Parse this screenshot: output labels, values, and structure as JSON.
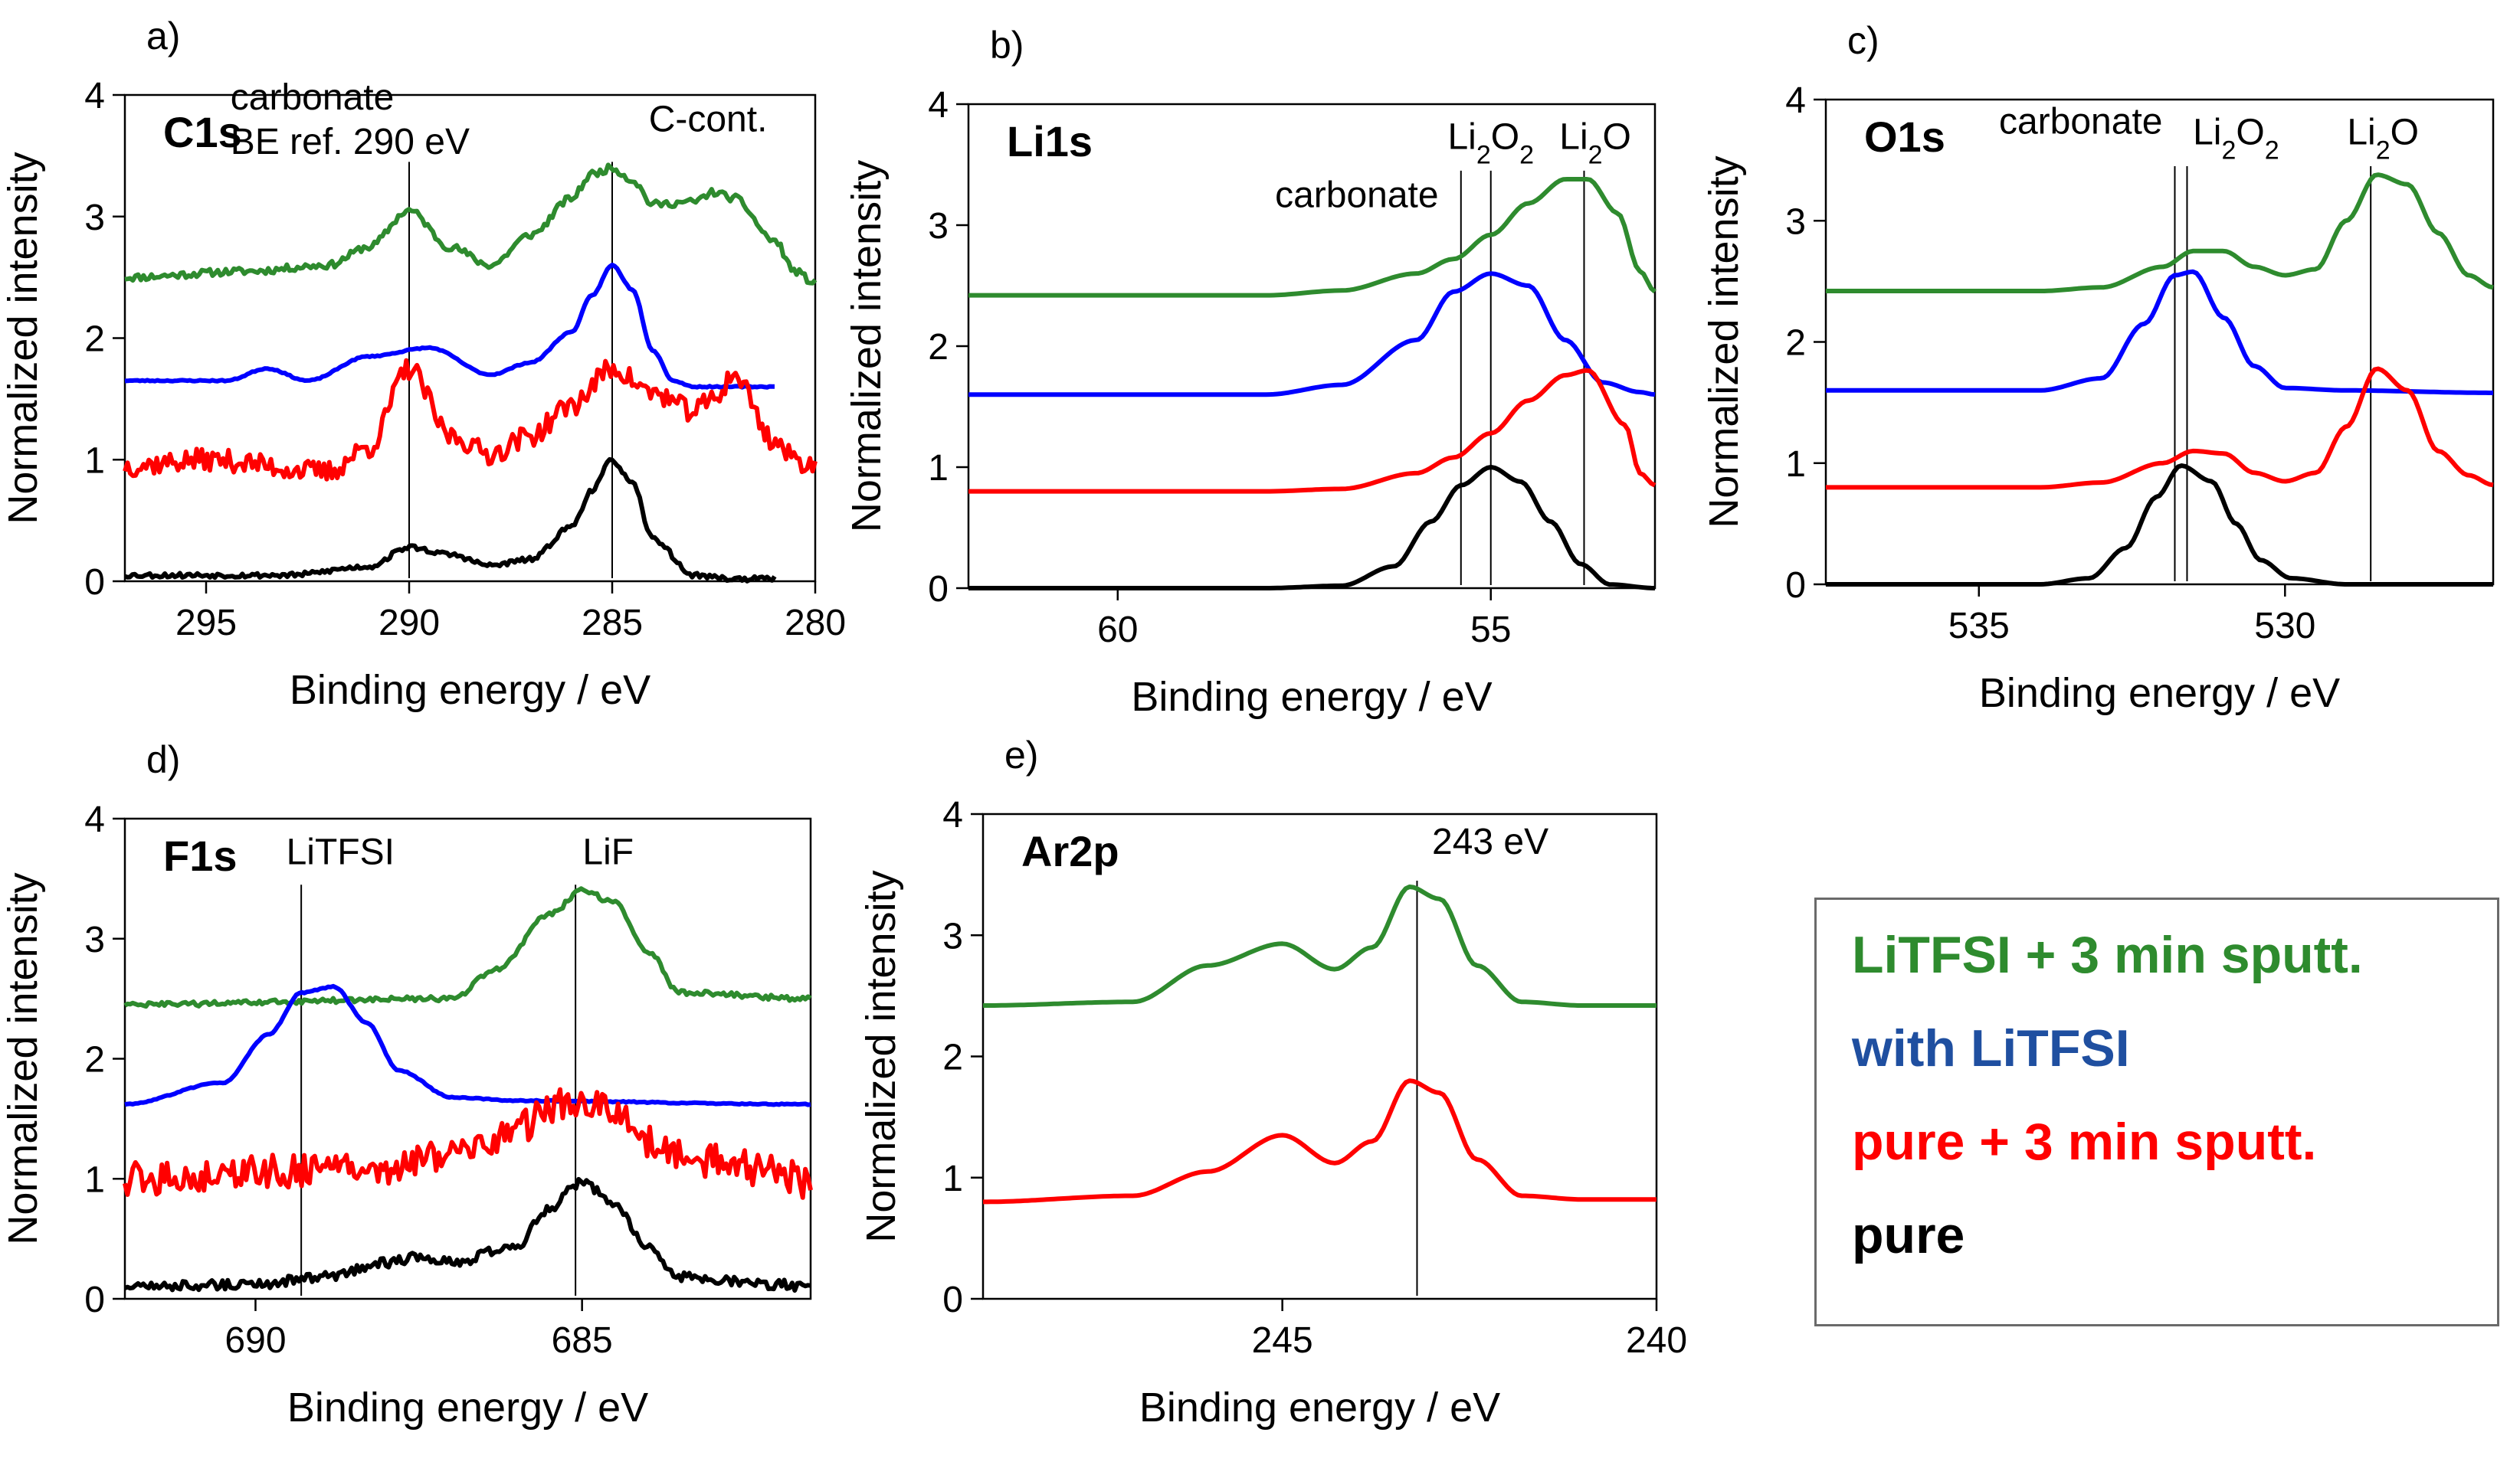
{
  "series_colors": {
    "lisputt": "#2e8b2e",
    "litfsi": "#0000ff",
    "puresputt": "#ff0000",
    "pure": "#000000"
  },
  "legend": {
    "entries": [
      {
        "key": "lisputt",
        "label": "LiTFSI + 3 min sputt.",
        "color": "#2e8b2e"
      },
      {
        "key": "litfsi",
        "label": "with LiTFSI",
        "color": "#1f4fa0"
      },
      {
        "key": "puresputt",
        "label": "pure + 3 min sputt.",
        "color": "#ff0000"
      },
      {
        "key": "pure",
        "label": "pure",
        "color": "#000000"
      }
    ]
  },
  "chart_data": [
    {
      "type": "line",
      "letter": "a)",
      "title": "C1s",
      "xlabel": "Binding energy / eV",
      "ylabel": "Normalized intensity",
      "xlim": [
        297,
        280
      ],
      "ylim": [
        0,
        4
      ],
      "xticks": [
        295,
        290,
        285,
        280
      ],
      "yticks": [
        0,
        1,
        2,
        3,
        4
      ],
      "noise": {
        "lisputt": 0.03,
        "litfsi": 0.005,
        "puresputt": 0.09,
        "pure": 0.02
      },
      "series": [
        {
          "key": "lisputt",
          "name": "LiTFSI + 3 min sputt.",
          "x": [
            297,
            294,
            292,
            291,
            290,
            289,
            288,
            287,
            286,
            285.5,
            285,
            284.5,
            284,
            283,
            282.5,
            282,
            281,
            280.5,
            280
          ],
          "y": [
            2.5,
            2.55,
            2.6,
            2.75,
            3.05,
            2.75,
            2.6,
            2.85,
            3.15,
            3.35,
            3.4,
            3.3,
            3.1,
            3.12,
            3.2,
            3.15,
            2.8,
            2.55,
            2.45
          ]
        },
        {
          "key": "litfsi",
          "name": "with LiTFSI",
          "x": [
            297,
            294.5,
            293.5,
            292.5,
            291,
            289.5,
            288,
            287,
            286,
            285.5,
            285,
            284.5,
            284,
            283.5,
            283,
            281
          ],
          "y": [
            1.65,
            1.65,
            1.75,
            1.65,
            1.85,
            1.92,
            1.7,
            1.8,
            2.05,
            2.35,
            2.6,
            2.4,
            1.9,
            1.65,
            1.6,
            1.6
          ]
        },
        {
          "key": "puresputt",
          "name": "pure + 3 min sputt.",
          "x": [
            297,
            295,
            292,
            291,
            290,
            289,
            288,
            287,
            286,
            285,
            284,
            283,
            282.5,
            282,
            281,
            280.5,
            280
          ],
          "y": [
            0.95,
            1.0,
            0.9,
            1.1,
            1.75,
            1.2,
            1.05,
            1.2,
            1.45,
            1.75,
            1.55,
            1.4,
            1.5,
            1.7,
            1.15,
            1.0,
            0.95
          ]
        },
        {
          "key": "pure",
          "name": "pure",
          "x": [
            297,
            293,
            291,
            290,
            289,
            288,
            287,
            286,
            285.5,
            285,
            284.5,
            284,
            283,
            282,
            281
          ],
          "y": [
            0.05,
            0.05,
            0.12,
            0.28,
            0.22,
            0.13,
            0.18,
            0.45,
            0.75,
            1.0,
            0.8,
            0.35,
            0.05,
            0.02,
            0.02
          ]
        }
      ],
      "vlines": [
        290,
        285
      ],
      "annotations": [
        {
          "lines": [
            [
              {
                "t": "carbonate"
              }
            ],
            [
              {
                "t": "BE ref. 290 eV"
              }
            ]
          ],
          "x": 294.4,
          "y": 3.88,
          "anchor": "start"
        },
        {
          "lines": [
            [
              {
                "t": "C-cont."
              }
            ]
          ],
          "x": 284.1,
          "y": 3.7,
          "anchor": "start"
        }
      ]
    },
    {
      "type": "line",
      "letter": "b)",
      "title": "Li1s",
      "xlabel": "Binding energy / eV",
      "ylabel": "Normalized intensity",
      "xlim": [
        62,
        52.8
      ],
      "ylim": [
        0,
        4
      ],
      "xticks": [
        60,
        55
      ],
      "yticks": [
        0,
        1,
        2,
        3,
        4
      ],
      "noise": {},
      "series": [
        {
          "key": "lisputt",
          "name": "LiTFSI + 3 min sputt.",
          "x": [
            62,
            58,
            57,
            56,
            55.5,
            55,
            54.5,
            54,
            53.7,
            53.3,
            53,
            52.8
          ],
          "y": [
            2.42,
            2.42,
            2.46,
            2.6,
            2.72,
            2.92,
            3.18,
            3.38,
            3.38,
            3.1,
            2.62,
            2.45
          ]
        },
        {
          "key": "litfsi",
          "name": "with LiTFSI",
          "x": [
            62,
            58,
            57,
            56,
            55.5,
            55,
            54.5,
            54,
            53.5,
            53,
            52.8
          ],
          "y": [
            1.6,
            1.6,
            1.68,
            2.05,
            2.45,
            2.6,
            2.5,
            2.05,
            1.7,
            1.62,
            1.6
          ]
        },
        {
          "key": "puresputt",
          "name": "pure + 3 min sputt.",
          "x": [
            62,
            58,
            57,
            56,
            55.5,
            55,
            54.5,
            54,
            53.7,
            53.2,
            53,
            52.8
          ],
          "y": [
            0.8,
            0.8,
            0.82,
            0.95,
            1.08,
            1.28,
            1.55,
            1.76,
            1.8,
            1.35,
            0.95,
            0.85
          ]
        },
        {
          "key": "pure",
          "name": "pure",
          "x": [
            62,
            58,
            57,
            56.3,
            55.8,
            55.4,
            55,
            54.6,
            54.2,
            53.8,
            53.4,
            52.8
          ],
          "y": [
            0,
            0,
            0.02,
            0.18,
            0.55,
            0.85,
            1.0,
            0.88,
            0.55,
            0.2,
            0.03,
            0.0
          ]
        }
      ],
      "vlines": [
        55.4,
        55.0,
        53.75
      ],
      "annotations": [
        {
          "lines": [
            [
              {
                "t": "carbonate"
              }
            ]
          ],
          "x": 55.7,
          "y": 3.15,
          "anchor": "end"
        },
        {
          "lines": [
            [
              {
                "t": "Li"
              },
              {
                "t": "2",
                "sub": true
              },
              {
                "t": "O"
              },
              {
                "t": "2",
                "sub": true
              }
            ]
          ],
          "x": 55.0,
          "y": 3.63,
          "anchor": "middle"
        },
        {
          "lines": [
            [
              {
                "t": "Li"
              },
              {
                "t": "2",
                "sub": true
              },
              {
                "t": "O"
              }
            ]
          ],
          "x": 53.6,
          "y": 3.63,
          "anchor": "middle"
        }
      ]
    },
    {
      "type": "line",
      "letter": "c)",
      "title": "O1s",
      "xlabel": "Binding energy / eV",
      "ylabel": "Normalized intensity",
      "xlim": [
        537.5,
        526.6
      ],
      "ylim": [
        0,
        4
      ],
      "xticks": [
        535,
        530
      ],
      "yticks": [
        0,
        1,
        2,
        3,
        4
      ],
      "noise": {},
      "series": [
        {
          "key": "lisputt",
          "name": "LiTFSI + 3 min sputt.",
          "x": [
            537.5,
            534,
            533,
            532,
            531.5,
            531,
            530.5,
            530,
            529.5,
            529,
            528.5,
            528,
            527.5,
            527,
            526.6
          ],
          "y": [
            2.42,
            2.42,
            2.45,
            2.62,
            2.75,
            2.75,
            2.62,
            2.55,
            2.6,
            3.0,
            3.38,
            3.3,
            2.9,
            2.55,
            2.45
          ]
        },
        {
          "key": "litfsi",
          "name": "with LiTFSI",
          "x": [
            537.5,
            534,
            533,
            532.3,
            531.8,
            531.5,
            531,
            530.5,
            530,
            529,
            526.6
          ],
          "y": [
            1.6,
            1.6,
            1.7,
            2.15,
            2.55,
            2.58,
            2.2,
            1.8,
            1.62,
            1.6,
            1.58
          ]
        },
        {
          "key": "puresputt",
          "name": "pure + 3 min sputt.",
          "x": [
            537.5,
            534,
            533,
            532,
            531.5,
            531,
            530.5,
            530,
            529.5,
            529,
            528.5,
            528,
            527.5,
            527,
            526.6
          ],
          "y": [
            0.8,
            0.8,
            0.84,
            1.0,
            1.1,
            1.08,
            0.92,
            0.85,
            0.92,
            1.3,
            1.78,
            1.6,
            1.1,
            0.9,
            0.82
          ]
        },
        {
          "key": "pure",
          "name": "pure",
          "x": [
            537.5,
            534,
            533.2,
            532.6,
            532.1,
            531.7,
            531.2,
            530.8,
            530.4,
            529.9,
            529,
            526.6
          ],
          "y": [
            0,
            0,
            0.05,
            0.3,
            0.72,
            0.98,
            0.85,
            0.5,
            0.2,
            0.05,
            0,
            0
          ]
        }
      ],
      "vlines": [
        531.8,
        531.6,
        528.6
      ],
      "annotations": [
        {
          "lines": [
            [
              {
                "t": "carbonate"
              }
            ]
          ],
          "x": 532.0,
          "y": 3.72,
          "anchor": "end"
        },
        {
          "lines": [
            [
              {
                "t": "Li"
              },
              {
                "t": "2",
                "sub": true
              },
              {
                "t": "O"
              },
              {
                "t": "2",
                "sub": true
              }
            ]
          ],
          "x": 530.8,
          "y": 3.63,
          "anchor": "middle"
        },
        {
          "lines": [
            [
              {
                "t": "Li"
              },
              {
                "t": "2",
                "sub": true
              },
              {
                "t": "O"
              }
            ]
          ],
          "x": 528.4,
          "y": 3.63,
          "anchor": "middle"
        }
      ]
    },
    {
      "type": "line",
      "letter": "d)",
      "title": "F1s",
      "xlabel": "Binding energy / eV",
      "ylabel": "Normalized intensity",
      "xlim": [
        692,
        681.5
      ],
      "ylim": [
        0,
        4
      ],
      "xticks": [
        690,
        685
      ],
      "yticks": [
        0,
        1,
        2,
        3,
        4
      ],
      "noise": {
        "lisputt": 0.02,
        "litfsi": 0.005,
        "puresputt": 0.14,
        "pure": 0.04
      },
      "series": [
        {
          "key": "lisputt",
          "name": "LiTFSI + 3 min sputt.",
          "x": [
            692,
            687,
            686.3,
            685.5,
            685,
            684.5,
            684,
            683.5,
            681.5
          ],
          "y": [
            2.45,
            2.5,
            2.75,
            3.2,
            3.4,
            3.3,
            2.9,
            2.55,
            2.5
          ]
        },
        {
          "key": "litfsi",
          "name": "with LiTFSI",
          "x": [
            692,
            690.5,
            689.8,
            689.3,
            688.8,
            688.3,
            687.8,
            687,
            686,
            681.5
          ],
          "y": [
            1.62,
            1.8,
            2.2,
            2.55,
            2.6,
            2.3,
            1.9,
            1.68,
            1.65,
            1.62
          ]
        },
        {
          "key": "puresputt",
          "name": "pure + 3 min sputt.",
          "x": [
            692,
            688,
            687,
            686,
            685.5,
            685,
            684.5,
            684,
            683,
            682,
            681.5
          ],
          "y": [
            1.0,
            1.1,
            1.2,
            1.4,
            1.6,
            1.62,
            1.55,
            1.3,
            1.15,
            1.05,
            0.95
          ]
        },
        {
          "key": "pure",
          "name": "pure",
          "x": [
            692,
            690,
            689,
            688,
            687.5,
            687,
            686,
            685.5,
            685,
            684.5,
            684,
            683.5,
            682,
            681.5
          ],
          "y": [
            0.1,
            0.12,
            0.18,
            0.3,
            0.35,
            0.3,
            0.45,
            0.75,
            0.98,
            0.78,
            0.45,
            0.18,
            0.12,
            0.1
          ]
        }
      ],
      "vlines": [
        689.3,
        685.1
      ],
      "annotations": [
        {
          "lines": [
            [
              {
                "t": "LiTFSI"
              }
            ]
          ],
          "x": 688.7,
          "y": 3.62,
          "anchor": "middle"
        },
        {
          "lines": [
            [
              {
                "t": "LiF"
              }
            ]
          ],
          "x": 684.6,
          "y": 3.62,
          "anchor": "middle"
        }
      ]
    },
    {
      "type": "line",
      "letter": "e)",
      "title": "Ar2p",
      "xlabel": "Binding energy / eV",
      "ylabel": "Normalized intensity",
      "xlim": [
        249,
        240
      ],
      "ylim": [
        0,
        4
      ],
      "xticks": [
        245,
        240
      ],
      "yticks": [
        0,
        1,
        2,
        3,
        4
      ],
      "noise": {},
      "series": [
        {
          "key": "lisputt",
          "name": "LiTFSI + 3 min sputt.",
          "x": [
            249,
            247,
            246,
            245,
            244.3,
            243.8,
            243.3,
            242.9,
            242.4,
            241.8,
            241,
            240
          ],
          "y": [
            2.42,
            2.45,
            2.75,
            2.93,
            2.72,
            2.9,
            3.4,
            3.3,
            2.75,
            2.45,
            2.42,
            2.42
          ]
        },
        {
          "key": "puresputt",
          "name": "pure + 3 min sputt.",
          "x": [
            249,
            247,
            246,
            245,
            244.3,
            243.8,
            243.3,
            242.9,
            242.4,
            241.8,
            241,
            240
          ],
          "y": [
            0.8,
            0.85,
            1.05,
            1.35,
            1.12,
            1.3,
            1.8,
            1.7,
            1.15,
            0.85,
            0.82,
            0.82
          ]
        }
      ],
      "vlines": [
        243.2
      ],
      "annotations": [
        {
          "lines": [
            [
              {
                "t": "243 eV"
              }
            ]
          ],
          "x": 243.0,
          "y": 3.67,
          "anchor": "start"
        }
      ]
    }
  ]
}
